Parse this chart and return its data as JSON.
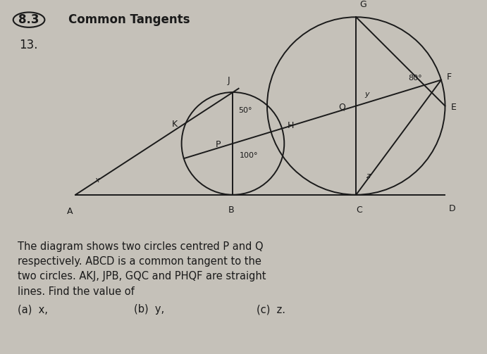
{
  "bg_color": "#c5c1b9",
  "title_box": "8.3",
  "title_text": "Common Tangents",
  "problem_num": "13.",
  "angle_50": "50°",
  "angle_100": "100°",
  "angle_80": "80°",
  "label_x": "x",
  "label_y": "y",
  "label_z": "z",
  "text_line1": "The diagram shows two circles centred P and Q",
  "text_line2": "respectively. ABCD is a common tangent to the",
  "text_line3": "two circles. AKJ, JPB, GQC and PHQF are straight",
  "text_line4": "lines. Find the value of",
  "text_a": "(a)  x,",
  "text_b": "(b)  y,",
  "text_c": "(c)  z.",
  "font_size_title": 12,
  "font_size_body": 10.5,
  "font_size_label": 9,
  "font_size_angle": 8
}
